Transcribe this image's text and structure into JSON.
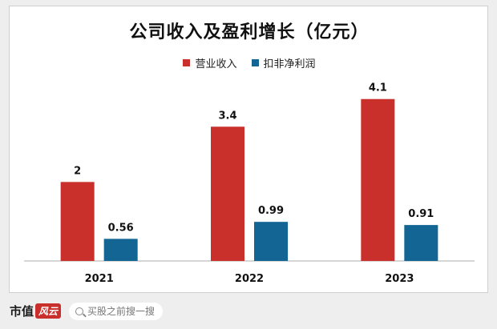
{
  "chart_data": {
    "type": "bar",
    "title": "公司收入及盈利增长（亿元）",
    "categories": [
      "2021",
      "2022",
      "2023"
    ],
    "series": [
      {
        "name": "营业收入",
        "color": "#c9302c",
        "values": [
          2,
          3.4,
          4.1
        ],
        "labels": [
          "2",
          "3.4",
          "4.1"
        ]
      },
      {
        "name": "扣非净利润",
        "color": "#136593",
        "values": [
          0.56,
          0.99,
          0.91
        ],
        "labels": [
          "0.56",
          "0.99",
          "0.91"
        ]
      }
    ],
    "ylim": [
      0,
      4.5
    ],
    "grid": false,
    "legend_position": "top-center"
  },
  "footer": {
    "brand_text": "市值",
    "brand_mark": "风云",
    "search_placeholder": "买股之前搜一搜",
    "search_icon": "search-icon"
  }
}
